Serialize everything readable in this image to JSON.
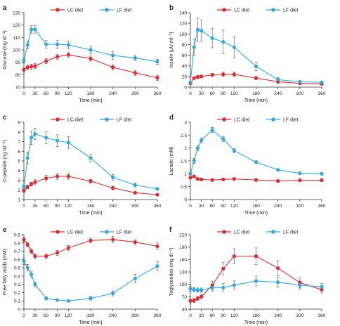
{
  "colors": {
    "lc": "#e8262e",
    "lf": "#2eaae1",
    "axis": "#333333",
    "text": "#222222"
  },
  "chart_data": [
    {
      "letter": "a",
      "type": "line",
      "ylabel": "Glucose (mg dl⁻¹)",
      "xlabel": "Time (min)",
      "ylim": [
        70,
        130
      ],
      "yticks": [
        70,
        80,
        90,
        100,
        110,
        120,
        130
      ],
      "xlim": [
        0,
        360
      ],
      "xticks": [
        0,
        30,
        60,
        90,
        120,
        180,
        240,
        300,
        360
      ],
      "series": [
        {
          "name": "LC diet",
          "x": [
            0,
            10,
            20,
            30,
            60,
            90,
            120,
            180,
            240,
            300,
            360
          ],
          "y": [
            84,
            86,
            86.5,
            87,
            91,
            94.5,
            96,
            93,
            86,
            81.5,
            77.5
          ],
          "err": [
            2,
            2,
            2,
            2,
            2,
            2,
            2,
            2,
            2,
            2,
            2
          ]
        },
        {
          "name": "LF diet",
          "x": [
            0,
            10,
            20,
            30,
            60,
            90,
            120,
            180,
            240,
            300,
            360
          ],
          "y": [
            91.5,
            104,
            116.5,
            116.5,
            104.5,
            104.5,
            104,
            100,
            95.5,
            93.5,
            90.5
          ],
          "err": [
            2,
            3,
            3,
            3,
            3,
            3,
            3,
            3,
            3,
            2,
            2
          ]
        }
      ]
    },
    {
      "letter": "b",
      "type": "line",
      "ylabel": "Insulin (μU ml⁻¹)",
      "xlabel": "Time (min)",
      "ylim": [
        0,
        140
      ],
      "yticks": [
        0,
        20,
        40,
        60,
        80,
        100,
        120,
        140
      ],
      "xlim": [
        0,
        360
      ],
      "xticks": [
        0,
        30,
        60,
        90,
        120,
        180,
        240,
        300,
        360
      ],
      "series": [
        {
          "name": "LC diet",
          "x": [
            0,
            10,
            20,
            30,
            60,
            90,
            120,
            180,
            240,
            300,
            360
          ],
          "y": [
            7,
            17,
            19,
            20,
            23,
            24,
            24,
            17,
            10,
            7,
            6
          ],
          "err": [
            1,
            2,
            3,
            3,
            3,
            4,
            4,
            3,
            2,
            1,
            1
          ]
        },
        {
          "name": "LF diet",
          "x": [
            0,
            10,
            20,
            30,
            60,
            90,
            120,
            180,
            240,
            300,
            360
          ],
          "y": [
            9,
            75,
            108,
            106,
            92,
            85,
            75,
            39,
            14,
            10,
            9
          ],
          "err": [
            2,
            15,
            22,
            20,
            18,
            22,
            20,
            8,
            4,
            2,
            2
          ]
        }
      ]
    },
    {
      "letter": "c",
      "type": "line",
      "ylabel": "C-peptide (ng ml⁻¹)",
      "xlabel": "Time (min)",
      "ylim": [
        1,
        9
      ],
      "yticks": [
        1,
        2,
        3,
        4,
        5,
        6,
        7,
        8,
        9
      ],
      "xlim": [
        0,
        360
      ],
      "xticks": [
        0,
        30,
        60,
        90,
        120,
        180,
        240,
        300,
        360
      ],
      "series": [
        {
          "name": "LC diet",
          "x": [
            0,
            10,
            20,
            30,
            60,
            90,
            120,
            180,
            240,
            300,
            360
          ],
          "y": [
            1.9,
            2.3,
            2.6,
            2.8,
            3.2,
            3.4,
            3.4,
            2.9,
            2.2,
            1.7,
            1.5
          ],
          "err": [
            0.1,
            0.2,
            0.2,
            0.3,
            0.3,
            0.3,
            0.3,
            0.2,
            0.2,
            0.1,
            0.1
          ]
        },
        {
          "name": "LF diet",
          "x": [
            0,
            10,
            20,
            30,
            60,
            90,
            120,
            180,
            240,
            300,
            360
          ],
          "y": [
            2.3,
            5.3,
            7.4,
            7.8,
            7.4,
            7.1,
            6.9,
            5.3,
            3.3,
            2.5,
            2.1
          ],
          "err": [
            0.2,
            0.6,
            0.7,
            0.6,
            0.6,
            0.6,
            0.6,
            0.4,
            0.3,
            0.2,
            0.1
          ]
        }
      ]
    },
    {
      "letter": "d",
      "type": "line",
      "ylabel": "Lactate (mM)",
      "xlabel": "Time (min)",
      "ylim": [
        0,
        3
      ],
      "yticks": [
        0,
        0.5,
        1,
        1.5,
        2,
        2.5,
        3
      ],
      "xlim": [
        0,
        360
      ],
      "xticks": [
        0,
        30,
        60,
        90,
        120,
        180,
        240,
        300,
        360
      ],
      "series": [
        {
          "name": "LC diet",
          "x": [
            0,
            10,
            20,
            30,
            60,
            90,
            120,
            180,
            240,
            300,
            360
          ],
          "y": [
            0.85,
            0.9,
            0.8,
            0.78,
            0.76,
            0.78,
            0.8,
            0.76,
            0.72,
            0.75,
            0.75
          ],
          "err": [
            0.05,
            0.05,
            0.05,
            0.05,
            0.05,
            0.05,
            0.05,
            0.05,
            0.05,
            0.05,
            0.05
          ]
        },
        {
          "name": "LF diet",
          "x": [
            0,
            10,
            20,
            30,
            60,
            90,
            120,
            180,
            240,
            300,
            360
          ],
          "y": [
            1.0,
            1.5,
            2.0,
            2.3,
            2.7,
            2.35,
            1.9,
            1.45,
            1.15,
            1.02,
            1.0
          ],
          "err": [
            0.05,
            0.1,
            0.1,
            0.1,
            0.1,
            0.1,
            0.08,
            0.06,
            0.05,
            0.05,
            0.05
          ]
        }
      ]
    },
    {
      "letter": "e",
      "type": "line",
      "ylabel": "Free fatty acids (mM)",
      "xlabel": "Time (min)",
      "ylim": [
        0,
        0.9
      ],
      "yticks": [
        0,
        0.1,
        0.2,
        0.3,
        0.4,
        0.5,
        0.6,
        0.7,
        0.8,
        0.9
      ],
      "xlim": [
        0,
        360
      ],
      "xticks": [
        0,
        30,
        60,
        90,
        120,
        180,
        240,
        300,
        360
      ],
      "series": [
        {
          "name": "LC diet",
          "x": [
            0,
            10,
            20,
            30,
            60,
            90,
            120,
            180,
            240,
            300,
            360
          ],
          "y": [
            0.84,
            0.78,
            0.7,
            0.64,
            0.64,
            0.68,
            0.74,
            0.83,
            0.84,
            0.81,
            0.76
          ],
          "err": [
            0.03,
            0.03,
            0.03,
            0.03,
            0.03,
            0.03,
            0.03,
            0.03,
            0.04,
            0.03,
            0.04
          ]
        },
        {
          "name": "LF diet",
          "x": [
            0,
            10,
            20,
            30,
            60,
            90,
            120,
            180,
            240,
            300,
            360
          ],
          "y": [
            0.58,
            0.5,
            0.42,
            0.3,
            0.13,
            0.11,
            0.1,
            0.13,
            0.19,
            0.37,
            0.52
          ],
          "err": [
            0.04,
            0.04,
            0.04,
            0.03,
            0.02,
            0.01,
            0.01,
            0.02,
            0.03,
            0.05,
            0.05
          ]
        }
      ]
    },
    {
      "letter": "f",
      "type": "line",
      "ylabel": "Triglycerides (mg dl⁻¹)",
      "xlabel": "Time (min)",
      "ylim": [
        40,
        220
      ],
      "yticks": [
        40,
        70,
        100,
        130,
        160,
        190,
        220
      ],
      "xlim": [
        0,
        360
      ],
      "xticks": [
        0,
        30,
        60,
        90,
        120,
        180,
        240,
        300,
        360
      ],
      "series": [
        {
          "name": "LC diet",
          "x": [
            0,
            10,
            20,
            30,
            60,
            90,
            120,
            180,
            240,
            300,
            360
          ],
          "y": [
            60,
            61,
            66,
            70,
            98,
            138,
            168,
            168,
            139,
            104,
            87
          ],
          "err": [
            5,
            5,
            5,
            6,
            10,
            15,
            18,
            20,
            18,
            12,
            8
          ]
        },
        {
          "name": "LF diet",
          "x": [
            0,
            10,
            20,
            30,
            60,
            90,
            120,
            180,
            240,
            300,
            360
          ],
          "y": [
            89,
            87,
            86,
            86,
            92,
            92,
            98,
            108,
            105,
            98,
            94
          ],
          "err": [
            6,
            5,
            5,
            5,
            8,
            10,
            10,
            12,
            12,
            10,
            8
          ]
        }
      ]
    }
  ]
}
